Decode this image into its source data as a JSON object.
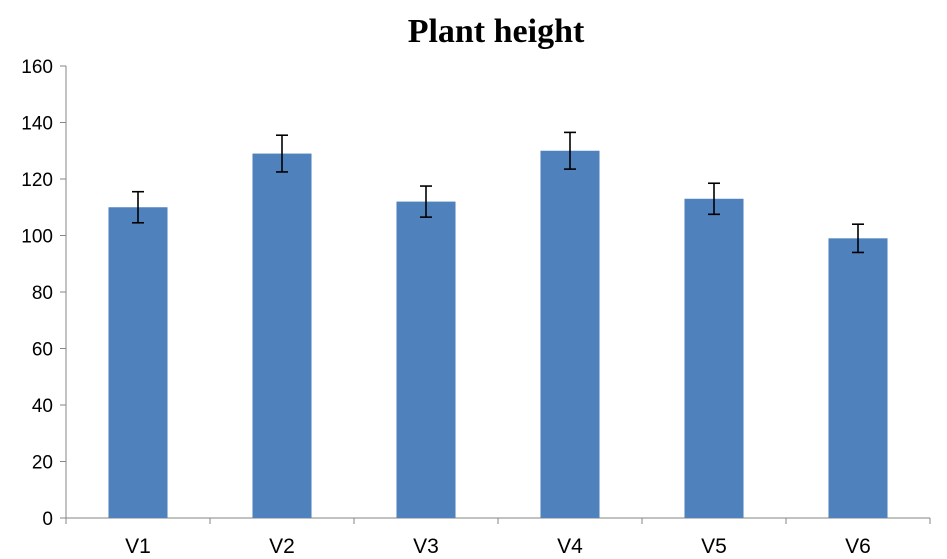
{
  "chart_data": {
    "type": "bar",
    "title": "Plant height",
    "xlabel": "",
    "ylabel": "",
    "categories": [
      "V1",
      "V2",
      "V3",
      "V4",
      "V5",
      "V6"
    ],
    "values": [
      110,
      129,
      112,
      130,
      113,
      99
    ],
    "error": [
      5.5,
      6.5,
      5.5,
      6.5,
      5.5,
      5
    ],
    "ylim": [
      0,
      160
    ],
    "yticks": [
      0,
      20,
      40,
      60,
      80,
      100,
      120,
      140,
      160
    ],
    "grid": false,
    "legend": "none",
    "bar_color": "#4F81BD",
    "error_color": "#000000"
  }
}
